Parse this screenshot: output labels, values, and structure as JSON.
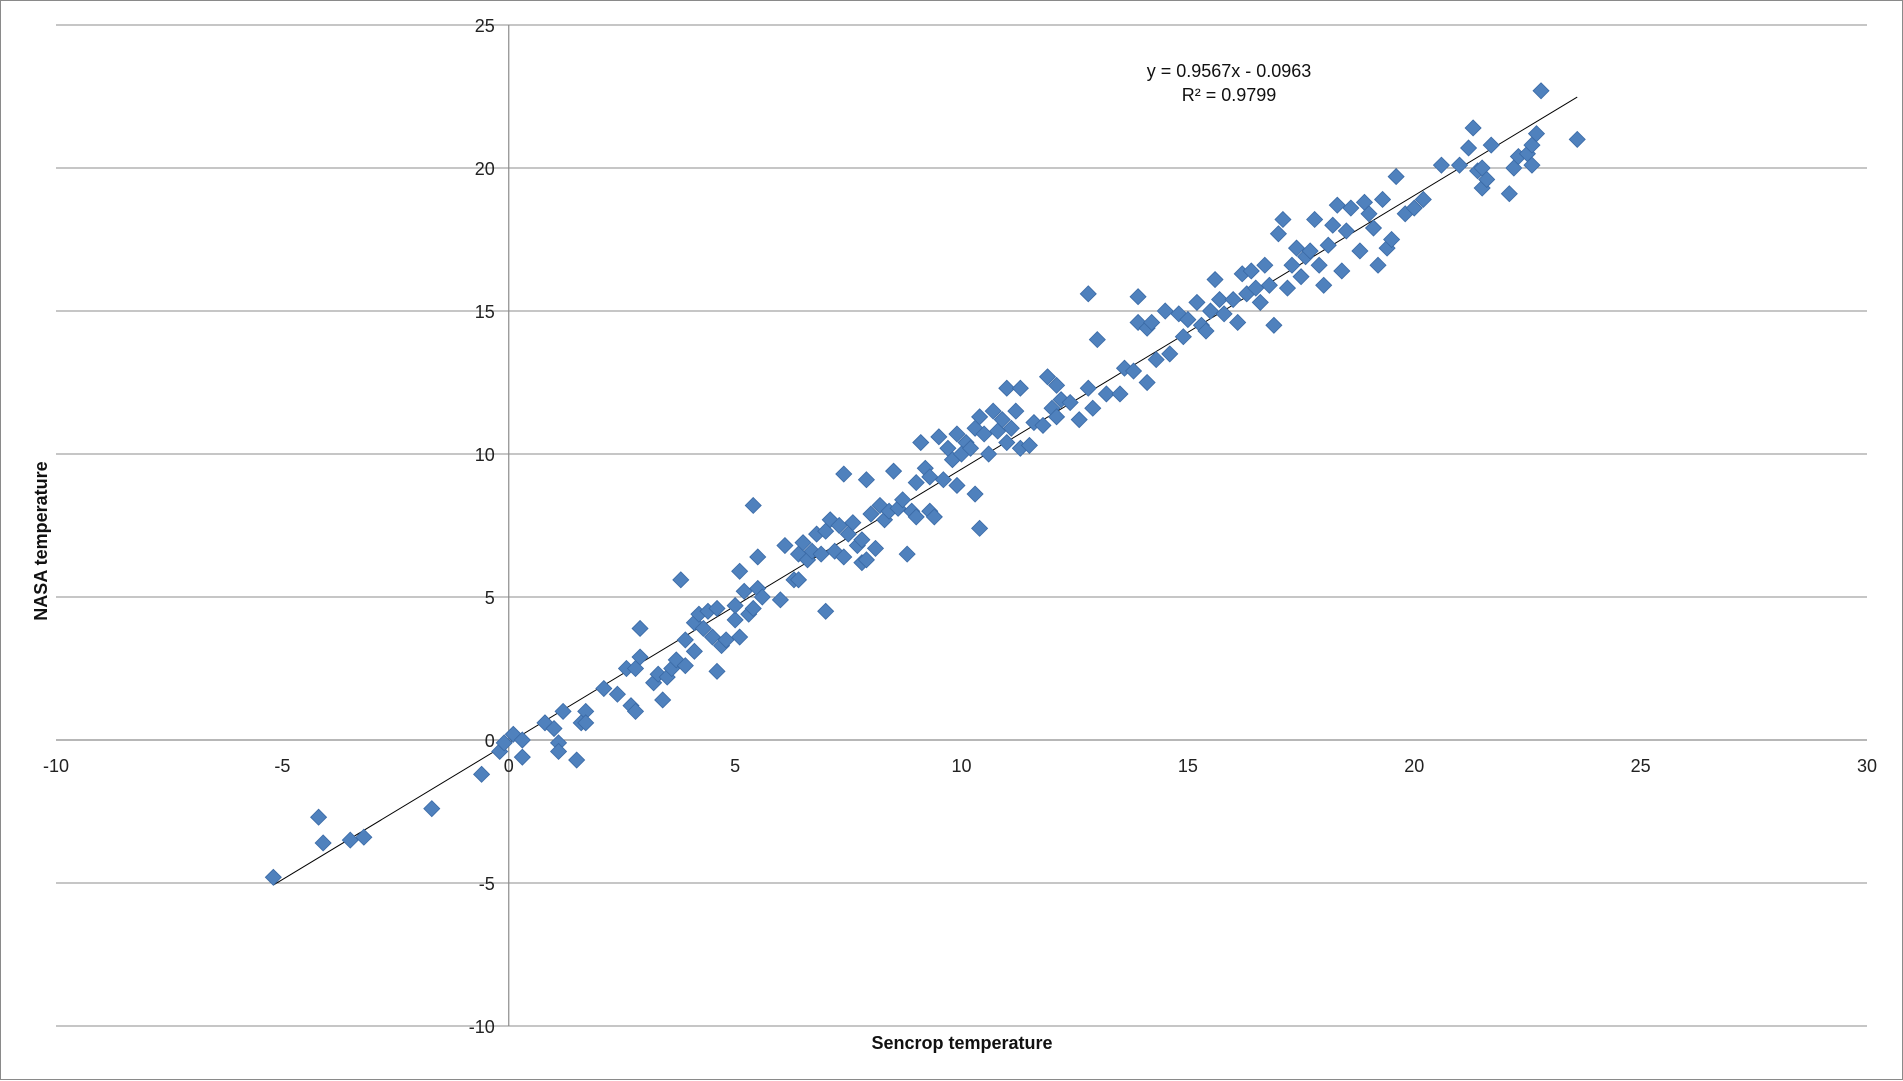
{
  "chart_data": {
    "type": "scatter",
    "xlabel": "Sencrop temperature",
    "ylabel": "NASA temperature",
    "xlim": [
      -10,
      30
    ],
    "ylim": [
      -10,
      25
    ],
    "xticks": [
      -10,
      -5,
      0,
      5,
      10,
      15,
      20,
      25,
      30
    ],
    "yticks": [
      -10,
      -5,
      0,
      5,
      10,
      15,
      20,
      25
    ],
    "grid": "horizontal",
    "marker": "diamond",
    "colors": {
      "marker": "#4f81bd",
      "marker_edge": "#3a6aa6",
      "trendline": "#000000",
      "grid": "#8c8c8c"
    },
    "trendline": {
      "slope": 0.9567,
      "intercept": -0.0963,
      "x_range": [
        -5.2,
        23.6
      ],
      "equation_label": "y = 0.9567x - 0.0963",
      "r2_label": "R² = 0.9799"
    },
    "series": [
      {
        "points": [
          [
            -5.2,
            -4.8
          ],
          [
            -4.2,
            -2.7
          ],
          [
            -4.1,
            -3.6
          ],
          [
            -3.5,
            -3.5
          ],
          [
            -3.2,
            -3.4
          ],
          [
            -1.7,
            -2.4
          ],
          [
            -0.6,
            -1.2
          ],
          [
            -0.2,
            -0.4
          ],
          [
            -0.1,
            -0.1
          ],
          [
            0.1,
            0.2
          ],
          [
            0.3,
            -0.6
          ],
          [
            0.3,
            0.0
          ],
          [
            0.8,
            0.6
          ],
          [
            1.0,
            0.4
          ],
          [
            1.1,
            -0.1
          ],
          [
            1.1,
            -0.4
          ],
          [
            1.2,
            1.0
          ],
          [
            1.5,
            -0.7
          ],
          [
            1.6,
            0.6
          ],
          [
            1.7,
            1.0
          ],
          [
            1.7,
            0.6
          ],
          [
            2.1,
            1.8
          ],
          [
            2.4,
            1.6
          ],
          [
            2.6,
            2.5
          ],
          [
            2.7,
            1.2
          ],
          [
            2.8,
            1.0
          ],
          [
            2.8,
            2.5
          ],
          [
            2.9,
            3.9
          ],
          [
            2.9,
            2.9
          ],
          [
            3.2,
            2.0
          ],
          [
            3.3,
            2.3
          ],
          [
            3.4,
            1.4
          ],
          [
            3.5,
            2.2
          ],
          [
            3.6,
            2.5
          ],
          [
            3.7,
            2.8
          ],
          [
            3.8,
            5.6
          ],
          [
            3.9,
            2.6
          ],
          [
            3.9,
            3.5
          ],
          [
            4.1,
            4.1
          ],
          [
            4.1,
            3.1
          ],
          [
            4.2,
            4.4
          ],
          [
            4.3,
            3.9
          ],
          [
            4.4,
            4.5
          ],
          [
            4.5,
            3.6
          ],
          [
            4.6,
            4.6
          ],
          [
            4.6,
            2.4
          ],
          [
            4.7,
            3.3
          ],
          [
            4.8,
            3.5
          ],
          [
            5.0,
            4.2
          ],
          [
            5.0,
            4.7
          ],
          [
            5.1,
            5.9
          ],
          [
            5.1,
            3.6
          ],
          [
            5.2,
            5.2
          ],
          [
            5.3,
            4.4
          ],
          [
            5.4,
            8.2
          ],
          [
            5.4,
            4.6
          ],
          [
            5.5,
            5.3
          ],
          [
            5.5,
            6.4
          ],
          [
            5.6,
            5.0
          ],
          [
            6.0,
            4.9
          ],
          [
            6.1,
            6.8
          ],
          [
            6.3,
            5.6
          ],
          [
            6.4,
            6.5
          ],
          [
            6.4,
            5.6
          ],
          [
            6.5,
            6.9
          ],
          [
            6.6,
            6.3
          ],
          [
            6.7,
            6.6
          ],
          [
            6.8,
            7.2
          ],
          [
            6.9,
            6.5
          ],
          [
            7.0,
            7.3
          ],
          [
            7.0,
            4.5
          ],
          [
            7.1,
            7.7
          ],
          [
            7.2,
            6.6
          ],
          [
            7.3,
            7.5
          ],
          [
            7.4,
            6.4
          ],
          [
            7.4,
            9.3
          ],
          [
            7.5,
            7.2
          ],
          [
            7.6,
            7.6
          ],
          [
            7.7,
            6.8
          ],
          [
            7.8,
            6.2
          ],
          [
            7.8,
            7.0
          ],
          [
            7.9,
            6.3
          ],
          [
            7.9,
            9.1
          ],
          [
            8.0,
            7.9
          ],
          [
            8.1,
            6.7
          ],
          [
            8.2,
            8.2
          ],
          [
            8.3,
            7.7
          ],
          [
            8.4,
            8.0
          ],
          [
            8.5,
            9.4
          ],
          [
            8.6,
            8.1
          ],
          [
            8.7,
            8.4
          ],
          [
            8.8,
            6.5
          ],
          [
            8.9,
            8.0
          ],
          [
            9.0,
            7.8
          ],
          [
            9.0,
            9.0
          ],
          [
            9.1,
            10.4
          ],
          [
            9.2,
            9.5
          ],
          [
            9.3,
            8.0
          ],
          [
            9.3,
            9.2
          ],
          [
            9.4,
            7.8
          ],
          [
            9.5,
            10.6
          ],
          [
            9.6,
            9.1
          ],
          [
            9.7,
            10.2
          ],
          [
            9.8,
            9.8
          ],
          [
            9.9,
            8.9
          ],
          [
            9.9,
            10.7
          ],
          [
            10.0,
            10.0
          ],
          [
            10.1,
            10.4
          ],
          [
            10.2,
            10.2
          ],
          [
            10.3,
            8.6
          ],
          [
            10.3,
            10.9
          ],
          [
            10.4,
            11.3
          ],
          [
            10.4,
            7.4
          ],
          [
            10.5,
            10.7
          ],
          [
            10.6,
            10.0
          ],
          [
            10.7,
            11.5
          ],
          [
            10.8,
            10.8
          ],
          [
            10.9,
            11.2
          ],
          [
            11.0,
            10.4
          ],
          [
            11.0,
            12.3
          ],
          [
            11.1,
            10.9
          ],
          [
            11.2,
            11.5
          ],
          [
            11.3,
            10.2
          ],
          [
            11.3,
            12.3
          ],
          [
            11.5,
            10.3
          ],
          [
            11.6,
            11.1
          ],
          [
            11.8,
            11.0
          ],
          [
            11.9,
            12.7
          ],
          [
            12.0,
            11.6
          ],
          [
            12.1,
            11.3
          ],
          [
            12.1,
            12.4
          ],
          [
            12.2,
            11.9
          ],
          [
            12.4,
            11.8
          ],
          [
            12.6,
            11.2
          ],
          [
            12.8,
            12.3
          ],
          [
            12.8,
            15.6
          ],
          [
            12.9,
            11.6
          ],
          [
            13.0,
            14.0
          ],
          [
            13.2,
            12.1
          ],
          [
            13.5,
            12.1
          ],
          [
            13.6,
            13.0
          ],
          [
            13.8,
            12.9
          ],
          [
            13.9,
            15.5
          ],
          [
            13.9,
            14.6
          ],
          [
            14.1,
            12.5
          ],
          [
            14.1,
            14.4
          ],
          [
            14.2,
            14.6
          ],
          [
            14.3,
            13.3
          ],
          [
            14.5,
            15.0
          ],
          [
            14.6,
            13.5
          ],
          [
            14.8,
            14.9
          ],
          [
            14.9,
            14.1
          ],
          [
            15.0,
            14.7
          ],
          [
            15.2,
            15.3
          ],
          [
            15.3,
            14.5
          ],
          [
            15.4,
            14.3
          ],
          [
            15.5,
            15.0
          ],
          [
            15.6,
            16.1
          ],
          [
            15.7,
            15.4
          ],
          [
            15.8,
            14.9
          ],
          [
            16.0,
            15.4
          ],
          [
            16.1,
            14.6
          ],
          [
            16.2,
            16.3
          ],
          [
            16.3,
            15.6
          ],
          [
            16.4,
            16.4
          ],
          [
            16.5,
            15.8
          ],
          [
            16.6,
            15.3
          ],
          [
            16.7,
            16.6
          ],
          [
            16.8,
            15.9
          ],
          [
            16.9,
            14.5
          ],
          [
            17.0,
            17.7
          ],
          [
            17.1,
            18.2
          ],
          [
            17.2,
            15.8
          ],
          [
            17.3,
            16.6
          ],
          [
            17.4,
            17.2
          ],
          [
            17.5,
            16.2
          ],
          [
            17.6,
            16.9
          ],
          [
            17.7,
            17.1
          ],
          [
            17.8,
            18.2
          ],
          [
            17.9,
            16.6
          ],
          [
            18.0,
            15.9
          ],
          [
            18.1,
            17.3
          ],
          [
            18.2,
            18.0
          ],
          [
            18.3,
            18.7
          ],
          [
            18.4,
            16.4
          ],
          [
            18.5,
            17.8
          ],
          [
            18.6,
            18.6
          ],
          [
            18.8,
            17.1
          ],
          [
            18.9,
            18.8
          ],
          [
            19.0,
            18.4
          ],
          [
            19.1,
            17.9
          ],
          [
            19.2,
            16.6
          ],
          [
            19.3,
            18.9
          ],
          [
            19.4,
            17.2
          ],
          [
            19.5,
            17.5
          ],
          [
            19.6,
            19.7
          ],
          [
            19.8,
            18.4
          ],
          [
            20.0,
            18.6
          ],
          [
            20.2,
            18.9
          ],
          [
            20.6,
            20.1
          ],
          [
            21.0,
            20.1
          ],
          [
            21.2,
            20.7
          ],
          [
            21.3,
            21.4
          ],
          [
            21.4,
            19.9
          ],
          [
            21.5,
            20.0
          ],
          [
            21.5,
            19.3
          ],
          [
            21.6,
            19.6
          ],
          [
            21.7,
            20.8
          ],
          [
            22.1,
            19.1
          ],
          [
            22.2,
            20.0
          ],
          [
            22.3,
            20.4
          ],
          [
            22.5,
            20.5
          ],
          [
            22.6,
            20.1
          ],
          [
            22.6,
            20.8
          ],
          [
            22.7,
            21.2
          ],
          [
            22.8,
            22.7
          ],
          [
            23.6,
            21.0
          ]
        ]
      }
    ]
  }
}
